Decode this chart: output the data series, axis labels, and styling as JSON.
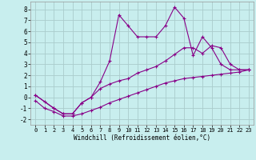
{
  "background_color": "#c8eeee",
  "grid_color": "#aacccc",
  "line_color": "#880088",
  "xlabel": "Windchill (Refroidissement éolien,°C)",
  "xlim": [
    -0.5,
    23.5
  ],
  "ylim": [
    -2.5,
    8.7
  ],
  "yticks": [
    -2,
    -1,
    0,
    1,
    2,
    3,
    4,
    5,
    6,
    7,
    8
  ],
  "xticks": [
    0,
    1,
    2,
    3,
    4,
    5,
    6,
    7,
    8,
    9,
    10,
    11,
    12,
    13,
    14,
    15,
    16,
    17,
    18,
    19,
    20,
    21,
    22,
    23
  ],
  "series": [
    {
      "x": [
        0,
        1,
        2,
        3,
        4,
        5,
        6,
        7,
        8,
        9,
        10,
        11,
        12,
        13,
        14,
        15,
        16,
        17,
        18,
        19,
        20,
        21,
        22,
        23
      ],
      "y": [
        0.2,
        -0.4,
        -1.0,
        -1.5,
        -1.5,
        -0.5,
        0.0,
        1.4,
        3.3,
        7.5,
        6.5,
        5.5,
        5.5,
        5.5,
        6.5,
        8.2,
        7.2,
        3.8,
        5.5,
        4.5,
        3.0,
        2.5,
        2.5,
        2.5
      ]
    },
    {
      "x": [
        0,
        2,
        3,
        4,
        5,
        6,
        7,
        8,
        9,
        10,
        11,
        12,
        13,
        14,
        15,
        16,
        17,
        18,
        19,
        20,
        21,
        22,
        23
      ],
      "y": [
        0.2,
        -1.0,
        -1.5,
        -1.5,
        -0.5,
        0.0,
        0.8,
        1.2,
        1.5,
        1.7,
        2.2,
        2.5,
        2.8,
        3.3,
        3.9,
        4.5,
        4.5,
        4.0,
        4.7,
        4.5,
        3.0,
        2.5,
        2.5
      ]
    },
    {
      "x": [
        0,
        1,
        2,
        3,
        4,
        5,
        6,
        7,
        8,
        9,
        10,
        11,
        12,
        13,
        14,
        15,
        16,
        17,
        18,
        19,
        20,
        21,
        22,
        23
      ],
      "y": [
        -0.3,
        -1.0,
        -1.3,
        -1.7,
        -1.7,
        -1.5,
        -1.2,
        -0.9,
        -0.5,
        -0.2,
        0.1,
        0.4,
        0.7,
        1.0,
        1.3,
        1.5,
        1.7,
        1.8,
        1.9,
        2.0,
        2.1,
        2.2,
        2.3,
        2.5
      ]
    }
  ]
}
